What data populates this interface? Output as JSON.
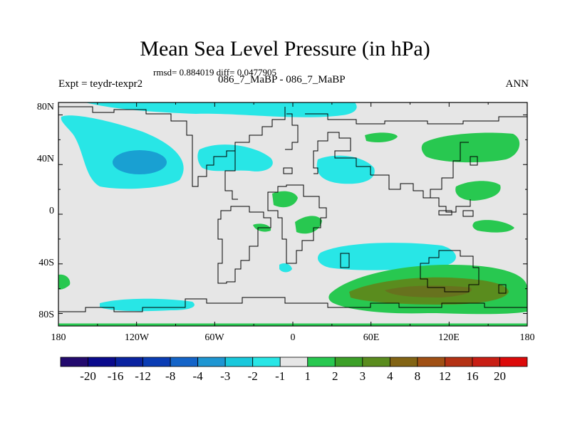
{
  "header": {
    "title": "Mean Sea Level Pressure (in hPa)",
    "stats": "rmsd= 0.884019 diff= 0.0477905",
    "expt_label": "Expt = teydr-texpr2",
    "case_label": "086_7_MaBP - 086_7_MaBP",
    "season": "ANN"
  },
  "chart_data": {
    "type": "heatmap",
    "title": "Mean Sea Level Pressure (in hPa)",
    "units": "hPa",
    "x_ticks": [
      "180",
      "120W",
      "60W",
      "0",
      "60E",
      "120E",
      "180"
    ],
    "y_ticks": [
      "80N",
      "40N",
      "0",
      "40S",
      "80S"
    ],
    "x_range": [
      -180,
      180
    ],
    "y_range": [
      -90,
      90
    ],
    "colorbar": {
      "levels": [
        "-20",
        "-16",
        "-12",
        "-8",
        "-4",
        "-3",
        "-2",
        "-1",
        "1",
        "2",
        "3",
        "4",
        "8",
        "12",
        "16",
        "20"
      ],
      "colors": [
        "#230a6e",
        "#0a0a8c",
        "#0a23a0",
        "#0a3cb4",
        "#1464c8",
        "#1e96d2",
        "#19c8dc",
        "#28e6e6",
        "#e6e6e6",
        "#28c850",
        "#3ca028",
        "#5a8c1e",
        "#826414",
        "#a05014",
        "#b43214",
        "#c81e14",
        "#dc0a0a"
      ]
    },
    "regions": [
      {
        "name": "north-pacific-low",
        "value": -2,
        "lon": -155,
        "lat": 40
      },
      {
        "name": "north-pacific-low-core",
        "value": -3,
        "lon": -150,
        "lat": 38
      },
      {
        "name": "arctic-low",
        "value": -2,
        "lon": -60,
        "lat": 85
      },
      {
        "name": "north-atlantic-low",
        "value": -2,
        "lon": -65,
        "lat": 42
      },
      {
        "name": "mediterranean-low",
        "value": -2,
        "lon": 28,
        "lat": 32
      },
      {
        "name": "south-atlantic-low",
        "value": -2,
        "lon": 32,
        "lat": -38
      },
      {
        "name": "southern-pacific-low",
        "value": -2,
        "lon": -145,
        "lat": -75
      },
      {
        "name": "west-pacific-high",
        "value": 2,
        "lon": 150,
        "lat": 50
      },
      {
        "name": "east-asia-high",
        "value": 2,
        "lon": 155,
        "lat": 15
      },
      {
        "name": "southern-ocean-high",
        "value": 3,
        "lon": 90,
        "lat": -62
      },
      {
        "name": "southern-ocean-core",
        "value": 4,
        "lon": 95,
        "lat": -62
      }
    ]
  }
}
